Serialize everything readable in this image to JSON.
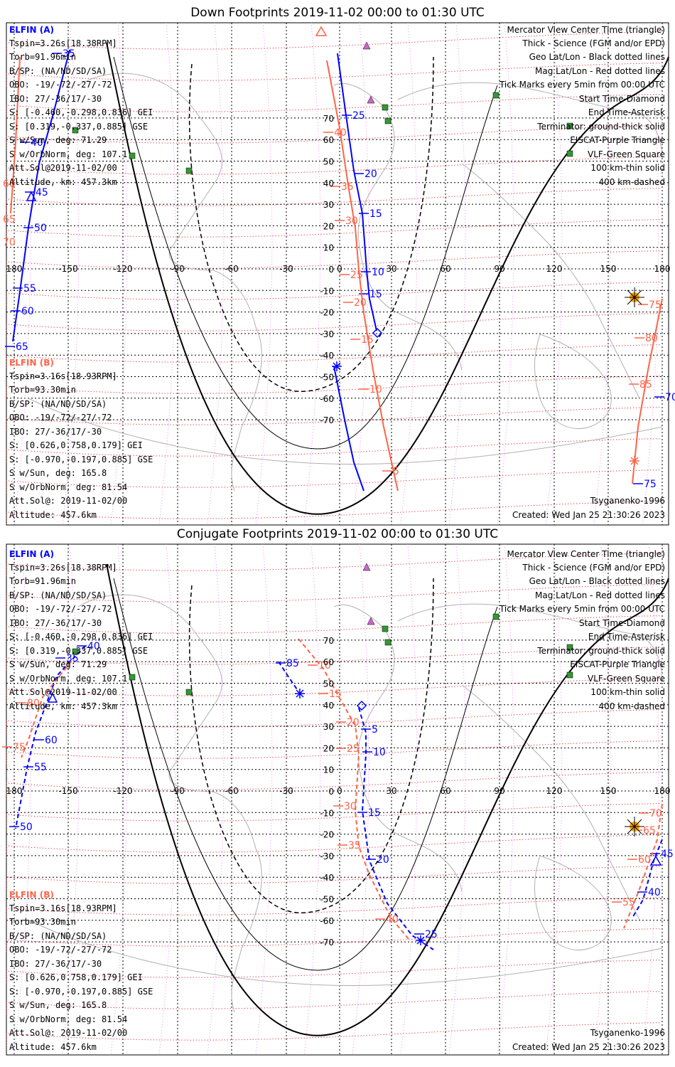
{
  "panels": [
    {
      "title": "Down Footprints 2019-11-02 00:00 to 01:30 UTC",
      "elfin_a": {
        "header": "ELFIN (A)",
        "lines": [
          "Tspin=3.26s[18.38RPM]",
          "Torb=91.96min",
          "B/SP: (NA/ND/SD/SA)",
          "OBO: -19/-72/-27/-72",
          "IBO: 27/-36/17/-30",
          "S: [-0.460,-0.298,0.836] GEI",
          "S: [0.319,-0.337,0.885] GSE",
          "S w/Sun, deg: 71.29",
          "S w/OrbNorm, deg: 107.1",
          "Att.Sol@2019-11-02/00",
          "Altitude, km: 457.3km"
        ]
      },
      "elfin_b": {
        "header": "ELFIN (B)",
        "lines": [
          "Tspin=3.16s[18.93RPM]",
          "Torb=93.30min",
          "B/SP: (NA/ND/SD/SA)",
          "OBO: -19/-72/-27/-72",
          "IBO: 27/-36/17/-30",
          "S: [0.626,0.758,0.179] GEI",
          "S: [-0.970,-0.197,0.885] GSE",
          "S w/Sun, deg: 165.8",
          "S w/OrbNorm, deg: 81.54",
          "Att.Sol@: 2019-11-02/00",
          "Altitude: 457.6km"
        ]
      },
      "legend": [
        {
          "text": "Mercator View Center Time (triangle)",
          "color": "#000000"
        },
        {
          "text": "Thick - Science (FGM and/or EPD)",
          "color": "#000000"
        },
        {
          "text": "Geo Lat/Lon - Black dotted lines",
          "color": "#000000"
        },
        {
          "text": "Mag Lat/Lon - Red dotted lines",
          "color": "#ff0000"
        },
        {
          "text": "Tick Marks every 5min from 00:00 UTC",
          "color": "#000000"
        },
        {
          "text": "Start Time-Diamond",
          "color": "#000000"
        },
        {
          "text": "End Time-Asterisk",
          "color": "#000000"
        },
        {
          "text": "Terminator: ground-thick solid",
          "color": "#000000"
        },
        {
          "text": "EISCAT-Purple Triangle",
          "color": "#ee82ee"
        },
        {
          "text": "VLF-Green Square",
          "color": "#33aa33"
        },
        {
          "text": "100 km-thin solid",
          "color": "#000000"
        },
        {
          "text": "400 km-dashed",
          "color": "#000000"
        }
      ],
      "model": "Tsyganenko-1996",
      "created": "Created: Wed Jan 25 21:30:26 2023",
      "a_ticks": [
        "35",
        "40",
        "45",
        "50",
        "55",
        "60",
        "65",
        "25",
        "20",
        "15",
        "10",
        "15"
      ],
      "b_ticks": [
        "40",
        "35",
        "30",
        "25",
        "20",
        "15",
        "10",
        "5",
        "75",
        "80",
        "85",
        "70",
        "75",
        "60",
        "65",
        "70",
        "85"
      ]
    },
    {
      "title": "Conjugate Footprints 2019-11-02 00:00 to 01:30 UTC",
      "elfin_a": {
        "header": "ELFIN (A)",
        "lines": [
          "Tspin=3.26s[18.38RPM]",
          "Torb=91.96min",
          "B/SP: (NA/ND/SD/SA)",
          "OBO: -19/-72/-27/-72",
          "IBO: 27/-36/17/-30",
          "S: [-0.460,-0.298,0.836] GEI",
          "S: [0.319,-0.337,0.885] GSE",
          "S w/Sun, deg: 71.29",
          "S w/OrbNorm, deg: 107.1",
          "Att.Sol@2019-11-02/00",
          "Altitude, km: 457.3km"
        ]
      },
      "elfin_b": {
        "header": "ELFIN (B)",
        "lines": [
          "Tspin=3.16s[18.93RPM]",
          "Torb=93.30min",
          "B/SP: (NA/ND/SD/SA)",
          "OBO: -19/-72/-27/-72",
          "IBO: 27/-36/17/-30",
          "S: [0.626,0.758,0.179] GEI",
          "S: [-0.970,-0.197,0.885] GSE",
          "S w/Sun, deg: 165.8",
          "S w/OrbNorm, deg: 81.54",
          "Att.Sol@: 2019-11-02/00",
          "Altitude: 457.6km"
        ]
      },
      "legend": [
        {
          "text": "Mercator View Center Time (triangle)",
          "color": "#000000"
        },
        {
          "text": "Thick - Science (FGM and/or EPD)",
          "color": "#000000"
        },
        {
          "text": "Geo Lat/Lon - Black dotted lines",
          "color": "#000000"
        },
        {
          "text": "Mag Lat/Lon - Red dotted lines",
          "color": "#ff0000"
        },
        {
          "text": "Tick Marks every 5min from 00:00 UTC",
          "color": "#000000"
        },
        {
          "text": "Start Time-Diamond",
          "color": "#000000"
        },
        {
          "text": "End Time-Asterisk",
          "color": "#000000"
        },
        {
          "text": "Terminator: ground-thick solid",
          "color": "#000000"
        },
        {
          "text": "EISCAT-Purple Triangle",
          "color": "#ee82ee"
        },
        {
          "text": "VLF-Green Square",
          "color": "#33aa33"
        },
        {
          "text": "100 km-thin solid",
          "color": "#000000"
        },
        {
          "text": "400 km-dashed",
          "color": "#000000"
        }
      ],
      "model": "Tsyganenko-1996",
      "created": "Created: Wed Jan 25 21:30:26 2023",
      "a_ticks": [
        "40",
        "35",
        "60",
        "55",
        "50",
        "85",
        "5",
        "10",
        "15",
        "20",
        "25",
        "45",
        "40"
      ],
      "b_ticks": [
        "10",
        "15",
        "20",
        "25",
        "30",
        "35",
        "40",
        "75",
        "80",
        "70",
        "65",
        "60",
        "55"
      ]
    }
  ],
  "axes": {
    "lon_ticks": [
      "180",
      "-150",
      "-120",
      "-90",
      "-60",
      "-30",
      "0",
      "30",
      "60",
      "90",
      "120",
      "150",
      "180"
    ],
    "lat_ticks": [
      "70",
      "60",
      "50",
      "40",
      "30",
      "20",
      "10",
      "0",
      "-10",
      "-20",
      "-30",
      "-40",
      "-50",
      "-60",
      "-70"
    ]
  },
  "colors": {
    "elfin_a": "#0000ff",
    "elfin_b": "#ff6347",
    "mag_grid": "#e00000",
    "eiscat": "#cc66cc",
    "vlf": "#339933",
    "sun": "#ffa500",
    "coast": "#b0b0b0"
  }
}
